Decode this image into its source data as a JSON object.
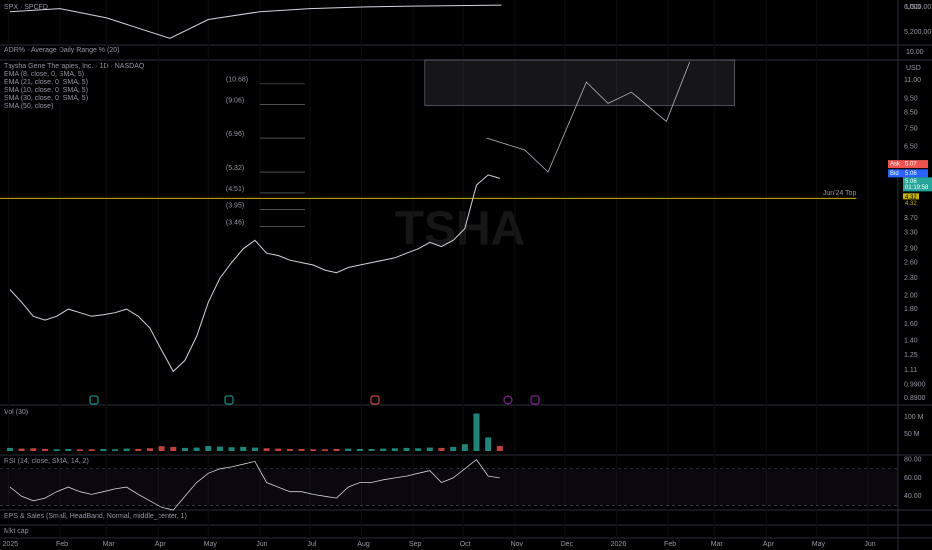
{
  "header": {
    "spx_label": "SPX · SPCFD",
    "adr_label": "ADR% · Average Daily Range % (20)",
    "adr_tick": "10.00",
    "symbol": "Taysha Gene Therapies, Inc. · 1D · NASDAQ",
    "indicators": [
      "EMA (8, close, 0, SMA, 5)",
      "EMA (21, close, 0, SMA, 5)",
      "SMA (10, close, 0, SMA, 5)",
      "SMA (30, close, 0, SMA, 5)",
      "SMA (50, close)"
    ],
    "vol_label": "Vol (30)",
    "rsi_label": "RSI (14, close, SMA, 14, 2)",
    "eps_label": "EPS & Sales (Small, HeadBand, Normal, middle_center, 1)",
    "mcap_label": "Mkt cap",
    "watermark": "TSHA",
    "top_currency": "USD",
    "main_currency": "USD"
  },
  "time_axis": {
    "xlim": [
      "2024-12-27",
      "2026-06-19"
    ],
    "xticks": [
      {
        "value": "2025-01-01",
        "label": "2025"
      },
      {
        "value": "2025-02-01",
        "label": "Feb"
      },
      {
        "value": "2025-03-01",
        "label": "Mar"
      },
      {
        "value": "2025-04-01",
        "label": "Apr"
      },
      {
        "value": "2025-05-01",
        "label": "May"
      },
      {
        "value": "2025-06-01",
        "label": "Jun"
      },
      {
        "value": "2025-07-01",
        "label": "Jul"
      },
      {
        "value": "2025-08-01",
        "label": "Aug"
      },
      {
        "value": "2025-09-01",
        "label": "Sep"
      },
      {
        "value": "2025-10-01",
        "label": "Oct"
      },
      {
        "value": "2025-11-01",
        "label": "Nov"
      },
      {
        "value": "2025-12-01",
        "label": "Dec"
      },
      {
        "value": "2026-01-01",
        "label": "2026"
      },
      {
        "value": "2026-02-01",
        "label": "Feb"
      },
      {
        "value": "2026-03-01",
        "label": "Mar"
      },
      {
        "value": "2026-04-01",
        "label": "Apr"
      },
      {
        "value": "2026-05-01",
        "label": "May"
      },
      {
        "value": "2026-06-01",
        "label": "Jun"
      }
    ]
  },
  "spx": {
    "ylim": [
      4816,
      6160
    ],
    "yticks": [
      {
        "value": 6000,
        "label": "6,000.00"
      },
      {
        "value": 5200,
        "label": "5,200.00"
      }
    ],
    "color": "#d1d4dc",
    "x": [
      "2025-01-02",
      "2025-02-01",
      "2025-03-01",
      "2025-04-08",
      "2025-05-01",
      "2025-06-01",
      "2025-07-01",
      "2025-08-01",
      "2025-09-01",
      "2025-10-24"
    ],
    "values": [
      5850,
      5950,
      5650,
      5000,
      5600,
      5850,
      5950,
      6000,
      6030,
      6060
    ]
  },
  "price": {
    "log": true,
    "ylim": [
      0.85,
      13
    ],
    "yticks": [
      {
        "value": 11,
        "label": "11.00"
      },
      {
        "value": 9.5,
        "label": "9.50"
      },
      {
        "value": 8.5,
        "label": "8.50"
      },
      {
        "value": 7.5,
        "label": "7.50"
      },
      {
        "value": 6.5,
        "label": "6.50"
      },
      {
        "value": 3.7,
        "label": "3.70"
      },
      {
        "value": 3.3,
        "label": "3.30"
      },
      {
        "value": 2.9,
        "label": "2.90"
      },
      {
        "value": 2.6,
        "label": "2.60"
      },
      {
        "value": 2.3,
        "label": "2.30"
      },
      {
        "value": 2,
        "label": "2.00"
      },
      {
        "value": 1.8,
        "label": "1.80"
      },
      {
        "value": 1.6,
        "label": "1.60"
      },
      {
        "value": 1.4,
        "label": "1.40"
      },
      {
        "value": 1.25,
        "label": "1.25"
      },
      {
        "value": 1.11,
        "label": "1.11"
      },
      {
        "value": 0.99,
        "label": "0.9900"
      },
      {
        "value": 0.89,
        "label": "0.8900"
      }
    ],
    "color": "#d1d4dc",
    "x": [
      "2025-01-02",
      "2025-01-09",
      "2025-01-16",
      "2025-01-23",
      "2025-01-30",
      "2025-02-06",
      "2025-02-13",
      "2025-02-20",
      "2025-02-27",
      "2025-03-06",
      "2025-03-13",
      "2025-03-20",
      "2025-03-27",
      "2025-04-03",
      "2025-04-10",
      "2025-04-17",
      "2025-04-24",
      "2025-05-01",
      "2025-05-08",
      "2025-05-15",
      "2025-05-22",
      "2025-05-29",
      "2025-06-05",
      "2025-06-12",
      "2025-06-19",
      "2025-06-26",
      "2025-07-03",
      "2025-07-10",
      "2025-07-17",
      "2025-07-24",
      "2025-07-31",
      "2025-08-07",
      "2025-08-14",
      "2025-08-21",
      "2025-08-28",
      "2025-09-04",
      "2025-09-11",
      "2025-09-18",
      "2025-09-25",
      "2025-10-02",
      "2025-10-09",
      "2025-10-16",
      "2025-10-23"
    ],
    "close": [
      2.1,
      1.9,
      1.7,
      1.65,
      1.7,
      1.8,
      1.75,
      1.7,
      1.72,
      1.75,
      1.8,
      1.7,
      1.55,
      1.3,
      1.1,
      1.2,
      1.45,
      1.9,
      2.3,
      2.6,
      2.9,
      3.1,
      2.8,
      2.75,
      2.65,
      2.6,
      2.55,
      2.45,
      2.4,
      2.5,
      2.55,
      2.6,
      2.65,
      2.7,
      2.8,
      2.9,
      3.05,
      2.95,
      3.1,
      3.4,
      4.8,
      5.2,
      5.06
    ],
    "levels": [
      {
        "value": 10.68,
        "label": "(10.68)"
      },
      {
        "value": 9.06,
        "label": "(9.06)"
      },
      {
        "value": 6.96,
        "label": "(6.96)"
      },
      {
        "value": 5.32,
        "label": "(5.32)"
      },
      {
        "value": 4.51,
        "label": "(4.51)"
      },
      {
        "value": 3.95,
        "label": "(3.95)"
      },
      {
        "value": 3.46,
        "label": "(3.46)"
      }
    ],
    "level_range": [
      "2025-06-01",
      "2025-06-28"
    ],
    "key_level": {
      "value": 4.32,
      "label": "Jun'24 Top",
      "color": "#c9b300",
      "end": "2026-05-25"
    },
    "projection": {
      "color": "#b2b5be",
      "x": [
        "2025-10-15",
        "2025-11-07",
        "2025-11-21",
        "2025-12-14",
        "2025-12-27",
        "2026-01-10",
        "2026-01-31",
        "2026-02-14"
      ],
      "values": [
        6.96,
        6.33,
        5.32,
        10.83,
        9.15,
        10.0,
        7.94,
        12.7
      ]
    },
    "target_zone": {
      "start": "2025-09-08",
      "end": "2026-03-13",
      "low": 9.0,
      "high": 12.9
    },
    "tags": {
      "ask_label": "Ask",
      "ask": 5.07,
      "bid_label": "Bid",
      "bid": 5.06,
      "last": 5.06,
      "countdown": "01:19:58",
      "level_tags": [
        4.32,
        4.32
      ]
    }
  },
  "volume": {
    "ylim": [
      0,
      135000000
    ],
    "yticks": [
      {
        "value": 100000000,
        "label": "100 M"
      },
      {
        "value": 50000000,
        "label": "50 M"
      }
    ],
    "values": [
      9000000,
      7000000,
      8000000,
      6000000,
      5000000,
      6000000,
      5000000,
      5000000,
      6000000,
      5000000,
      7000000,
      6000000,
      8000000,
      14000000,
      12000000,
      9000000,
      10000000,
      15000000,
      13000000,
      11000000,
      12000000,
      10000000,
      8000000,
      7000000,
      6000000,
      6000000,
      5000000,
      5000000,
      6000000,
      7000000,
      6000000,
      6000000,
      7000000,
      8000000,
      9000000,
      8000000,
      10000000,
      9000000,
      12000000,
      20000000,
      110000000,
      40000000,
      15000000
    ]
  },
  "rsi": {
    "ylim": [
      25,
      85
    ],
    "yticks": [
      {
        "value": 80,
        "label": "80.00"
      },
      {
        "value": 60,
        "label": "60.00"
      },
      {
        "value": 40,
        "label": "40.00"
      }
    ],
    "band": [
      70,
      30
    ],
    "color": "#d1d4dc",
    "values": [
      50,
      40,
      35,
      38,
      45,
      50,
      45,
      42,
      45,
      48,
      50,
      42,
      35,
      28,
      25,
      40,
      55,
      65,
      70,
      72,
      75,
      78,
      55,
      50,
      45,
      45,
      42,
      40,
      38,
      50,
      55,
      55,
      58,
      60,
      62,
      65,
      68,
      55,
      60,
      70,
      80,
      62,
      60
    ]
  }
}
